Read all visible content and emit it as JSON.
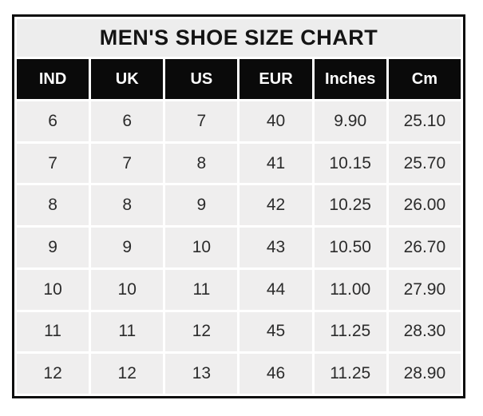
{
  "title": "MEN'S SHOE SIZE CHART",
  "colors": {
    "outer_border": "#0c0c0c",
    "title_background": "#ededed",
    "header_background": "#0a0a0a",
    "header_text": "#ffffff",
    "cell_background": "#efeeee",
    "cell_text": "#2b2b2b",
    "gap_lines": "#ffffff"
  },
  "chart_data": {
    "type": "table",
    "title": "MEN'S SHOE SIZE CHART",
    "columns": [
      "IND",
      "UK",
      "US",
      "EUR",
      "Inches",
      "Cm"
    ],
    "rows": [
      [
        "6",
        "6",
        "7",
        "40",
        "9.90",
        "25.10"
      ],
      [
        "7",
        "7",
        "8",
        "41",
        "10.15",
        "25.70"
      ],
      [
        "8",
        "8",
        "9",
        "42",
        "10.25",
        "26.00"
      ],
      [
        "9",
        "9",
        "10",
        "43",
        "10.50",
        "26.70"
      ],
      [
        "10",
        "10",
        "11",
        "44",
        "11.00",
        "27.90"
      ],
      [
        "11",
        "11",
        "12",
        "45",
        "11.25",
        "28.30"
      ],
      [
        "12",
        "12",
        "13",
        "46",
        "11.25",
        "28.90"
      ]
    ]
  }
}
